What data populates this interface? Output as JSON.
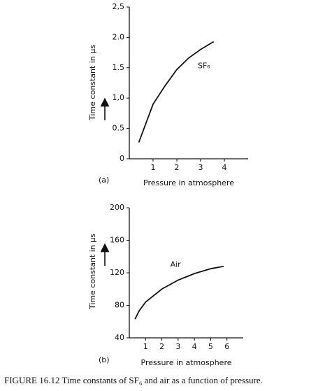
{
  "chart_data": [
    {
      "type": "line",
      "panel_label": "(a)",
      "ylabel": "Time constant in μs",
      "xlabel": "Pressure in atmosphere",
      "x": [
        0.4,
        1,
        1.5,
        2,
        2.5,
        3,
        3.55
      ],
      "series": [
        {
          "name": "SF₆",
          "color": "#111111",
          "values": [
            0.27,
            0.9,
            1.2,
            1.47,
            1.66,
            1.8,
            1.93
          ]
        }
      ],
      "xlim": [
        0,
        5
      ],
      "ylim": [
        0,
        2.5
      ],
      "xticks": [
        1,
        2,
        3,
        4
      ],
      "yticks": [
        0,
        {
          "value": 0.5,
          "label": "0.5"
        },
        {
          "value": 1,
          "label": "1,0"
        },
        {
          "value": 1.5,
          "label": "1.5"
        },
        {
          "value": 2,
          "label": "2.0"
        },
        {
          "value": 2.5,
          "label": "2,5"
        }
      ]
    },
    {
      "type": "line",
      "panel_label": "(b)",
      "ylabel": "Time constant in μs",
      "xlabel": "Pressure in atmosphere",
      "x": [
        0.35,
        0.6,
        1,
        2,
        3,
        4,
        5,
        5.8
      ],
      "series": [
        {
          "name": "Air",
          "color": "#111111",
          "values": [
            63,
            73,
            84,
            100,
            111,
            119,
            125,
            128
          ]
        }
      ],
      "xlim": [
        0,
        7
      ],
      "ylim": [
        40,
        200
      ],
      "xticks": [
        1,
        2,
        3,
        4,
        5,
        6
      ],
      "yticks": [
        40,
        80,
        120,
        160,
        200
      ]
    }
  ],
  "caption": "FIGURE 16.12  Time constants of SF₆ and air as a function of  pressure."
}
